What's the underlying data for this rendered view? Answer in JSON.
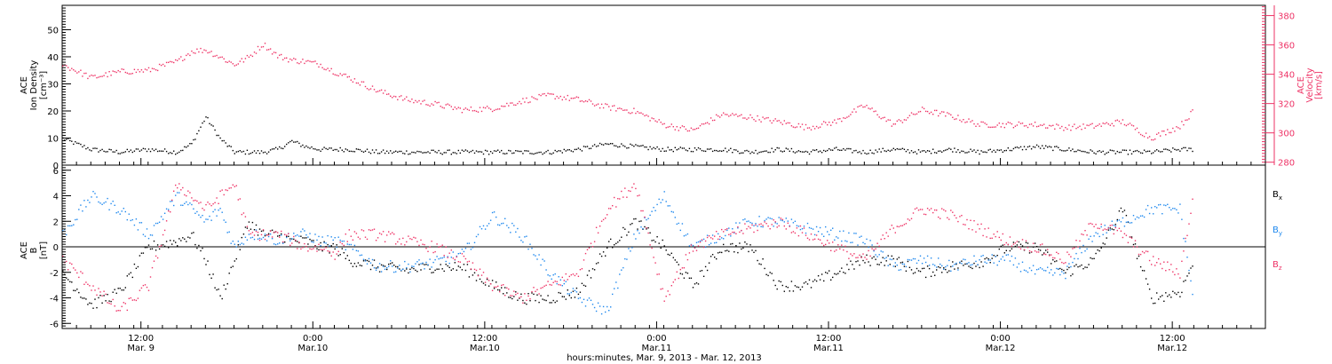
{
  "chart_data": [
    {
      "type": "scatter",
      "panel": "top",
      "ylabel": [
        "ACE",
        "Ion Density",
        "[cm⁻³]"
      ],
      "ylim": [
        0,
        59
      ],
      "yticks": [
        0,
        10,
        20,
        30,
        40,
        50
      ],
      "ylabel_right": [
        "ACE",
        "Velocity",
        "[km/s]"
      ],
      "ylim_right": [
        278,
        387
      ],
      "yticks_right": [
        280,
        300,
        320,
        340,
        360,
        380
      ],
      "series": [
        {
          "axis": "left",
          "color": "#000000",
          "hours": [
            0,
            4,
            8,
            12,
            16,
            18,
            20,
            22,
            24,
            26,
            28,
            30,
            32,
            34,
            36,
            38,
            40,
            44,
            48,
            52,
            56,
            60,
            64,
            68,
            72,
            76,
            80,
            84,
            88,
            92,
            96,
            100,
            104,
            108,
            112,
            116,
            120,
            124,
            128,
            132,
            136,
            140,
            144,
            148,
            152,
            156,
            158
          ],
          "values": [
            10,
            6,
            5,
            6,
            5,
            8,
            18,
            10,
            5,
            5,
            5,
            6,
            9,
            7,
            6,
            6,
            6,
            5,
            5,
            5,
            5,
            5,
            5,
            5,
            6,
            8,
            7,
            6,
            6,
            6,
            5,
            6,
            5,
            6,
            5,
            6,
            5,
            6,
            5,
            6,
            7,
            6,
            5,
            5,
            5,
            6,
            6
          ]
        },
        {
          "axis": "right",
          "color": "#ee3366",
          "hours": [
            0,
            4,
            8,
            12,
            16,
            18,
            20,
            22,
            24,
            26,
            28,
            30,
            32,
            34,
            36,
            38,
            40,
            44,
            48,
            52,
            56,
            60,
            64,
            68,
            72,
            76,
            80,
            84,
            88,
            92,
            96,
            100,
            104,
            108,
            112,
            116,
            120,
            124,
            128,
            132,
            136,
            140,
            144,
            148,
            152,
            156,
            158
          ],
          "values": [
            347,
            338,
            342,
            343,
            349,
            356,
            357,
            352,
            347,
            352,
            361,
            353,
            350,
            349,
            347,
            342,
            338,
            329,
            323,
            320,
            316,
            317,
            322,
            326,
            323,
            318,
            315,
            306,
            302,
            313,
            311,
            308,
            304,
            308,
            319,
            306,
            316,
            312,
            306,
            306,
            306,
            304,
            305,
            308,
            297,
            305,
            316
          ]
        }
      ]
    },
    {
      "type": "scatter",
      "panel": "bottom",
      "ylabel": [
        "ACE",
        "B",
        "[nT]"
      ],
      "ylim": [
        -6.4,
        6.4
      ],
      "yticks": [
        -6,
        -4,
        -2,
        0,
        2,
        4,
        6
      ],
      "zero_line": true,
      "legend": [
        {
          "label": "B",
          "sub": "x",
          "color": "#000000"
        },
        {
          "label": "B",
          "sub": "y",
          "color": "#1e88ee"
        },
        {
          "label": "B",
          "sub": "z",
          "color": "#ee3366"
        }
      ],
      "series": [
        {
          "name": "Bx",
          "color": "#000000",
          "hours": [
            0,
            4,
            8,
            12,
            16,
            18,
            20,
            22,
            24,
            26,
            28,
            30,
            32,
            34,
            36,
            38,
            40,
            44,
            48,
            52,
            56,
            60,
            64,
            68,
            72,
            76,
            80,
            84,
            88,
            92,
            96,
            100,
            104,
            108,
            112,
            116,
            120,
            124,
            128,
            132,
            136,
            140,
            144,
            148,
            152,
            156,
            158
          ],
          "values": [
            -2,
            -4.5,
            -3.5,
            0,
            0.5,
            1,
            -1,
            -4,
            -1,
            2,
            1,
            1,
            0.5,
            0.5,
            0,
            0,
            -1,
            -1.5,
            -1.8,
            -1.5,
            -1.6,
            -3,
            -4,
            -4,
            -3.5,
            0,
            2,
            0,
            -3,
            0,
            0,
            -3,
            -3,
            -2,
            -1,
            -1,
            -2,
            -1.5,
            -1.2,
            0,
            0,
            -2,
            -1,
            3,
            -4,
            -3.5,
            -1
          ]
        },
        {
          "name": "By",
          "color": "#1e88ee",
          "hours": [
            0,
            4,
            8,
            12,
            16,
            18,
            20,
            22,
            24,
            26,
            28,
            30,
            32,
            34,
            36,
            38,
            40,
            44,
            48,
            52,
            56,
            60,
            64,
            68,
            72,
            76,
            80,
            84,
            88,
            92,
            96,
            100,
            104,
            108,
            112,
            116,
            120,
            124,
            128,
            132,
            136,
            140,
            144,
            148,
            152,
            156,
            158
          ],
          "values": [
            1,
            4,
            3,
            1,
            4,
            3,
            2,
            3,
            0,
            1,
            1,
            0.5,
            1,
            1,
            0.5,
            0.5,
            0,
            -1.5,
            -1.5,
            -1.2,
            -0.5,
            2.5,
            1,
            -2,
            -4,
            -5,
            1,
            4,
            0,
            1,
            2,
            2,
            1.5,
            1,
            0.5,
            -1.5,
            -1,
            -1.5,
            -1,
            -1,
            -2,
            -2,
            1,
            2,
            3,
            3,
            -4.5
          ]
        },
        {
          "name": "Bz",
          "color": "#ee3366",
          "hours": [
            0,
            4,
            8,
            12,
            16,
            18,
            20,
            22,
            24,
            26,
            28,
            30,
            32,
            34,
            36,
            38,
            40,
            44,
            48,
            52,
            56,
            60,
            64,
            68,
            72,
            76,
            80,
            84,
            88,
            92,
            96,
            100,
            104,
            108,
            112,
            116,
            120,
            124,
            128,
            132,
            136,
            140,
            144,
            148,
            152,
            156,
            158
          ],
          "values": [
            -1,
            -3,
            -5,
            -3,
            5,
            4,
            3,
            4,
            5,
            1,
            1,
            1,
            0.5,
            0,
            0,
            -0.5,
            1,
            1,
            0.5,
            0,
            -1,
            -3,
            -4,
            -3,
            -2,
            3,
            5,
            -4,
            0,
            1,
            1.5,
            2,
            1,
            0,
            -1,
            1.5,
            3,
            2.5,
            1.5,
            0.5,
            0,
            -1,
            2,
            1,
            -1,
            -2,
            4.5
          ]
        }
      ]
    }
  ],
  "x_axis": {
    "range_hours": [
      0,
      168
    ],
    "ticks": [
      {
        "hour": 11,
        "time": "12:00",
        "date": "Mar. 9"
      },
      {
        "hour": 35,
        "time": "0:00",
        "date": "Mar.10"
      },
      {
        "hour": 59,
        "time": "12:00",
        "date": "Mar.10"
      },
      {
        "hour": 83,
        "time": "0:00",
        "date": "Mar.11"
      },
      {
        "hour": 107,
        "time": "12:00",
        "date": "Mar.11"
      },
      {
        "hour": 131,
        "time": "0:00",
        "date": "Mar.12"
      },
      {
        "hour": 155,
        "time": "12:00",
        "date": "Mar.12"
      }
    ],
    "label": "hours:minutes, Mar.  9, 2013 - Mar. 12, 2013"
  }
}
